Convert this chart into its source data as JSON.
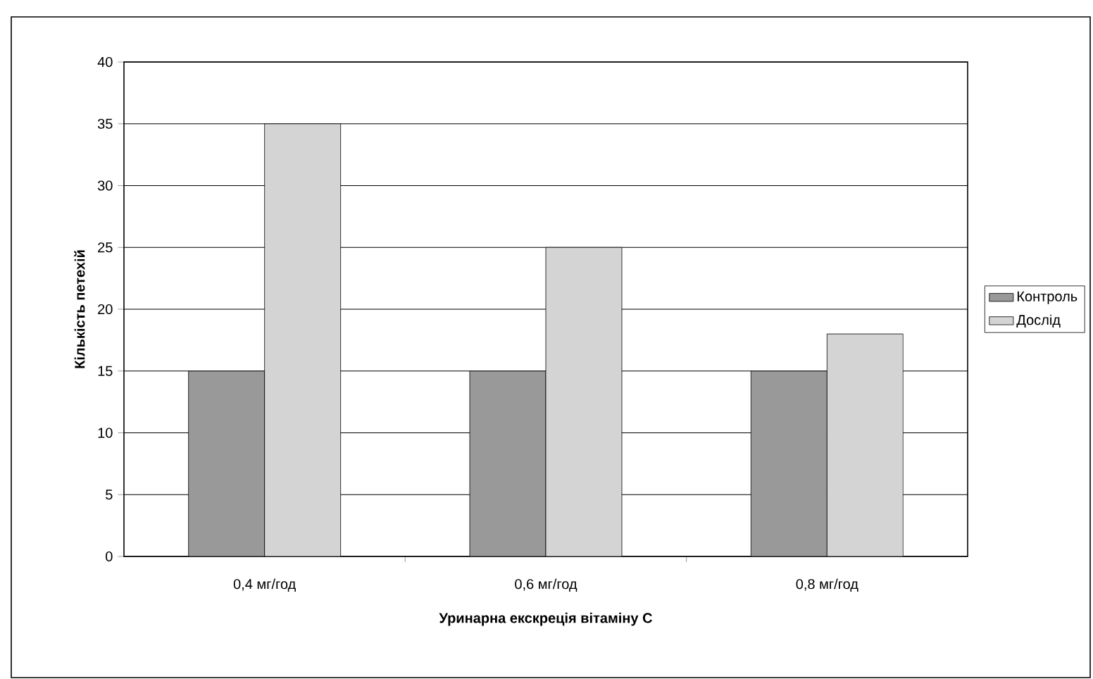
{
  "chart_data": {
    "type": "bar",
    "xlabel": "Уринарна екскреція вітаміну С",
    "ylabel": "Кількість петехій",
    "categories": [
      "0,4 мг/год",
      "0,6 мг/год",
      "0,8 мг/год"
    ],
    "series": [
      {
        "name": "Контроль",
        "color": "#999999",
        "values": [
          15,
          15,
          15
        ]
      },
      {
        "name": "Дослід",
        "color": "#d4d4d4",
        "values": [
          35,
          25,
          18
        ]
      }
    ],
    "ylim": [
      0,
      40
    ],
    "yticks": [
      0,
      5,
      10,
      15,
      20,
      25,
      30,
      35,
      40
    ],
    "grid": "y",
    "legend": "right"
  }
}
